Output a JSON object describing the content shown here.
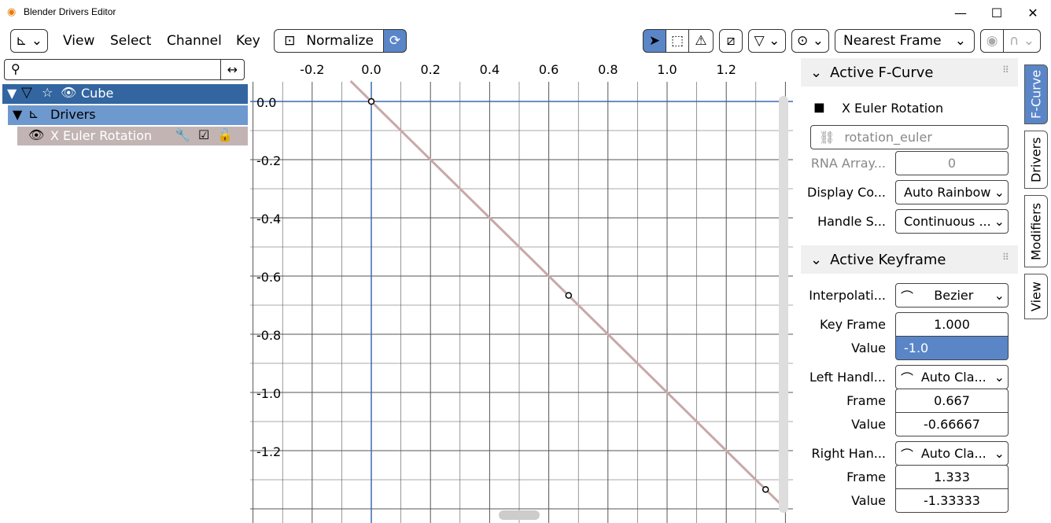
{
  "window": {
    "title": "Blender Drivers Editor",
    "min": "—",
    "max": "☐",
    "close": "✕"
  },
  "menu": {
    "view": "View",
    "select": "Select",
    "channel": "Channel",
    "key": "Key",
    "normalize": "Normalize",
    "snap": "Nearest Frame"
  },
  "channels": {
    "obj": "Cube",
    "drivers": "Drivers",
    "fcurve": "X Euler Rotation"
  },
  "axis": {
    "x": [
      "-0.2",
      "0.0",
      "0.2",
      "0.4",
      "0.6",
      "0.8",
      "1.0",
      "1.2"
    ],
    "y": [
      "0.0",
      "-0.2",
      "-0.4",
      "-0.6",
      "-0.8",
      "-1.0",
      "-1.2"
    ]
  },
  "curve": {
    "points": [
      [
        0,
        0
      ],
      [
        0.667,
        -0.66667
      ],
      [
        1.333,
        -1.33333
      ]
    ],
    "color": "#c8a8a8"
  },
  "fcurve_panel": {
    "header": "Active F-Curve",
    "name": "X Euler Rotation",
    "path": "rotation_euler",
    "rna_lbl": "RNA Array...",
    "rna_val": "0",
    "disp_lbl": "Display Co...",
    "disp_val": "Auto Rainbow",
    "hs_lbl": "Handle S...",
    "hs_val": "Continuous ..."
  },
  "key_panel": {
    "header": "Active Keyframe",
    "interp_lbl": "Interpolati...",
    "interp_val": "Bezier",
    "kf_lbl": "Key Frame",
    "kf_val": "1.000",
    "val_lbl": "Value",
    "val_val": "-1.0",
    "lh_lbl": "Left Handl...",
    "lh_val": "Auto Cla...",
    "lf_lbl": "Frame",
    "lf_val": "0.667",
    "lv_lbl": "Value",
    "lv_val": "-0.66667",
    "rh_lbl": "Right Han...",
    "rh_val": "Auto Cla...",
    "rf_lbl": "Frame",
    "rf_val": "1.333",
    "rv_lbl": "Value",
    "rv_val": "-1.33333"
  },
  "tabs": {
    "fcurve": "F-Curve",
    "drivers": "Drivers",
    "modifiers": "Modifiers",
    "view": "View"
  },
  "colors": {
    "accent": "#5a86c8",
    "selected_row": "#3366a0",
    "drivers_row": "#6e99cf",
    "fcurve_row": "#c3b4b4"
  }
}
